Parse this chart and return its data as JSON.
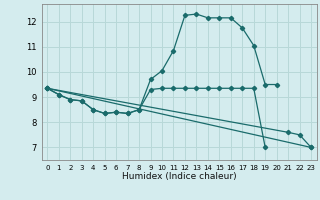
{
  "title": "",
  "xlabel": "Humidex (Indice chaleur)",
  "ylabel": "",
  "background_color": "#d4ecee",
  "grid_color": "#b8d8d8",
  "line_color": "#1a6b6b",
  "xlim": [
    -0.5,
    23.5
  ],
  "ylim": [
    6.5,
    12.7
  ],
  "yticks": [
    7,
    8,
    9,
    10,
    11,
    12
  ],
  "xticks": [
    0,
    1,
    2,
    3,
    4,
    5,
    6,
    7,
    8,
    9,
    10,
    11,
    12,
    13,
    14,
    15,
    16,
    17,
    18,
    19,
    20,
    21,
    22,
    23
  ],
  "series": [
    {
      "x": [
        0,
        1,
        2,
        3,
        4,
        5,
        6,
        7,
        8,
        9,
        10,
        11,
        12,
        13,
        14,
        15,
        16,
        17,
        18,
        19,
        20
      ],
      "y": [
        9.35,
        9.1,
        8.9,
        8.85,
        8.5,
        8.35,
        8.4,
        8.35,
        8.5,
        9.7,
        10.05,
        10.85,
        12.25,
        12.3,
        12.15,
        12.15,
        12.15,
        11.75,
        11.05,
        9.5,
        9.5
      ]
    },
    {
      "x": [
        0,
        23
      ],
      "y": [
        9.35,
        7.0
      ]
    },
    {
      "x": [
        0,
        21,
        22,
        23
      ],
      "y": [
        9.35,
        7.6,
        7.5,
        7.0
      ]
    },
    {
      "x": [
        0,
        1,
        2,
        3,
        4,
        5,
        6,
        7,
        8,
        9,
        10,
        11,
        12,
        13,
        14,
        15,
        16,
        17,
        18,
        19
      ],
      "y": [
        9.35,
        9.1,
        8.9,
        8.85,
        8.5,
        8.35,
        8.4,
        8.35,
        8.5,
        9.3,
        9.35,
        9.35,
        9.35,
        9.35,
        9.35,
        9.35,
        9.35,
        9.35,
        9.35,
        7.0
      ]
    }
  ]
}
